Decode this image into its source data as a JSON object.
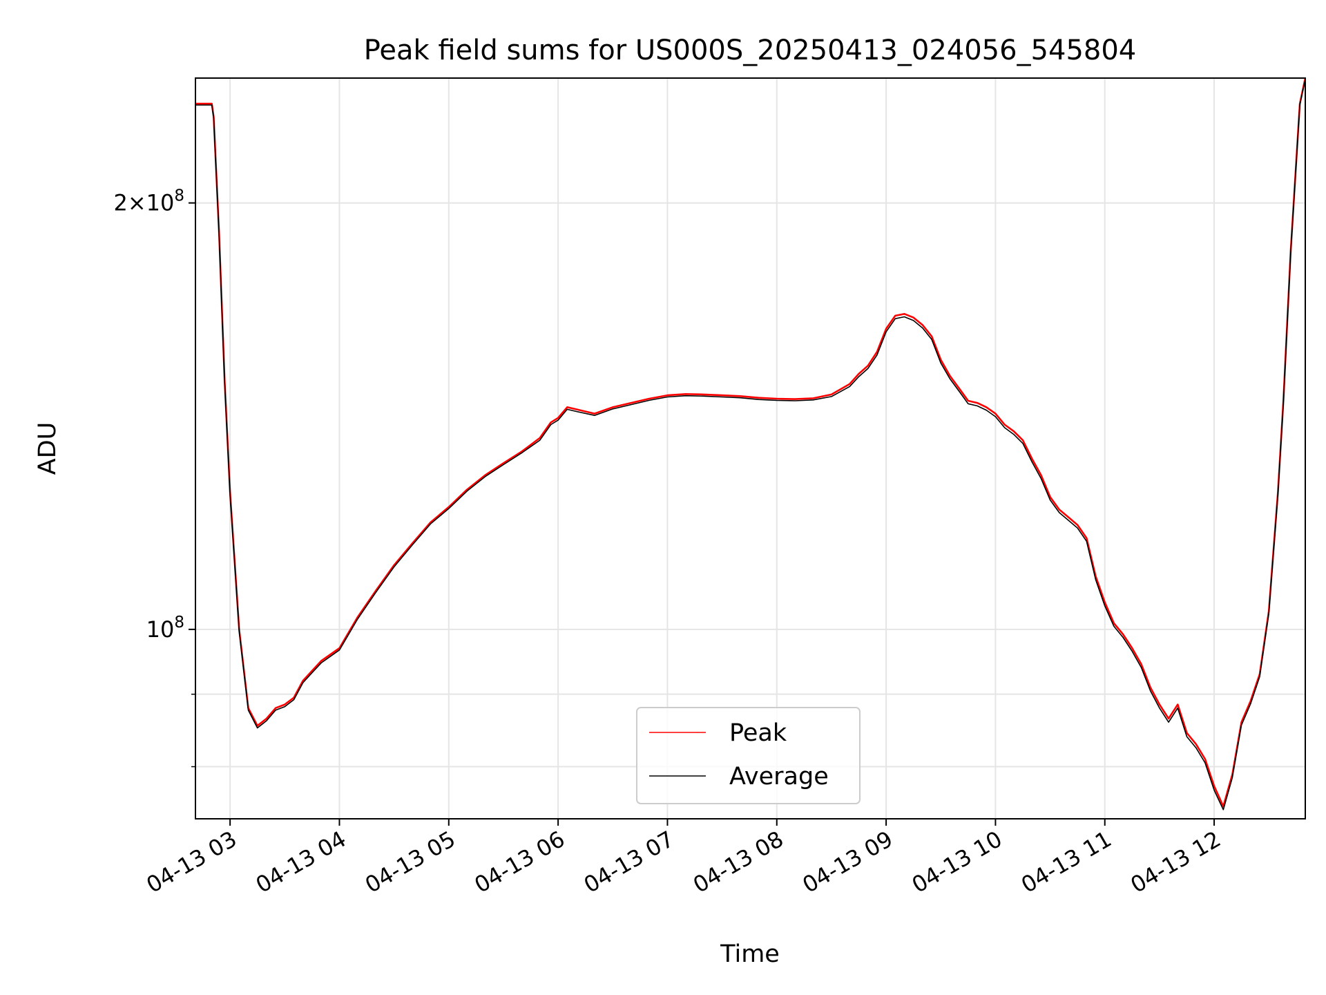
{
  "chart_data": {
    "type": "line",
    "title": "Peak field sums for US000S_20250413_024056_545804",
    "xlabel": "Time",
    "ylabel": "ADU",
    "x_axis_type": "time",
    "x_range": [
      "2025-04-13T02:41:00",
      "2025-04-13T12:50:00"
    ],
    "y_scale": "log",
    "y_range": [
      73500000,
      245000000
    ],
    "grid": true,
    "legend_position": "lower-center",
    "x_ticks": [
      "04-13 03",
      "04-13 04",
      "04-13 05",
      "04-13 06",
      "04-13 07",
      "04-13 08",
      "04-13 09",
      "04-13 10",
      "04-13 11",
      "04-13 12"
    ],
    "y_ticks": [
      {
        "label_base": "2×10",
        "label_exp": "8",
        "value": 200000000
      },
      {
        "label_base": "10",
        "label_exp": "8",
        "value": 100000000
      }
    ],
    "y_minor_ticks": [
      80000000,
      90000000
    ],
    "x": [
      "02:41",
      "02:50",
      "02:51",
      "02:54",
      "02:57",
      "03:00",
      "03:05",
      "03:10",
      "03:15",
      "03:20",
      "03:25",
      "03:30",
      "03:35",
      "03:40",
      "03:45",
      "03:50",
      "04:00",
      "04:10",
      "04:20",
      "04:30",
      "04:40",
      "04:50",
      "05:00",
      "05:10",
      "05:20",
      "05:30",
      "05:40",
      "05:50",
      "05:56",
      "06:00",
      "06:05",
      "06:10",
      "06:20",
      "06:30",
      "06:40",
      "06:50",
      "07:00",
      "07:10",
      "07:20",
      "07:30",
      "07:40",
      "07:50",
      "08:00",
      "08:10",
      "08:20",
      "08:30",
      "08:40",
      "08:45",
      "08:50",
      "08:55",
      "09:00",
      "09:05",
      "09:10",
      "09:15",
      "09:20",
      "09:25",
      "09:30",
      "09:35",
      "09:40",
      "09:45",
      "09:50",
      "09:55",
      "10:00",
      "10:05",
      "10:10",
      "10:15",
      "10:20",
      "10:25",
      "10:30",
      "10:35",
      "10:40",
      "10:45",
      "10:50",
      "10:55",
      "11:00",
      "11:05",
      "11:10",
      "11:15",
      "11:20",
      "11:25",
      "11:30",
      "11:35",
      "11:40",
      "11:45",
      "11:50",
      "11:55",
      "12:00",
      "12:05",
      "12:10",
      "12:15",
      "12:20",
      "12:25",
      "12:30",
      "12:35",
      "12:38",
      "12:42",
      "12:47",
      "12:50"
    ],
    "series": [
      {
        "name": "Peak",
        "color": "#ff0000",
        "values": [
          235000000,
          235000000,
          230000000,
          190000000,
          150000000,
          125000000,
          100000000,
          88000000,
          85500000,
          86500000,
          88000000,
          88500000,
          89500000,
          92000000,
          93500000,
          95000000,
          97000000,
          102000000,
          106500000,
          111000000,
          115000000,
          119000000,
          122000000,
          125500000,
          128500000,
          131000000,
          133500000,
          136500000,
          140000000,
          141000000,
          143500000,
          143000000,
          142000000,
          143500000,
          144500000,
          145500000,
          146300000,
          146600000,
          146500000,
          146300000,
          146100000,
          145700000,
          145500000,
          145400000,
          145600000,
          146500000,
          149000000,
          151500000,
          153500000,
          157000000,
          163000000,
          166500000,
          167000000,
          166000000,
          164000000,
          161000000,
          155000000,
          151000000,
          148000000,
          145000000,
          144500000,
          143500000,
          142000000,
          139500000,
          138000000,
          136000000,
          132000000,
          128500000,
          124000000,
          121500000,
          120000000,
          118500000,
          116000000,
          109000000,
          104500000,
          101000000,
          99200000,
          97000000,
          94500000,
          91000000,
          88500000,
          86500000,
          88500000,
          84500000,
          83000000,
          81000000,
          77500000,
          75000000,
          79000000,
          86000000,
          89000000,
          93000000,
          103000000,
          125000000,
          145000000,
          185000000,
          235000000,
          245000000
        ]
      },
      {
        "name": "Average",
        "color": "#000000",
        "values": [
          234500000,
          234500000,
          229500000,
          189500000,
          149500000,
          124500000,
          99700000,
          87700000,
          85200000,
          86200000,
          87700000,
          88200000,
          89200000,
          91700000,
          93200000,
          94700000,
          96700000,
          101700000,
          106200000,
          110700000,
          114700000,
          118700000,
          121700000,
          125200000,
          128200000,
          130700000,
          133200000,
          136000000,
          139500000,
          140500000,
          143000000,
          142500000,
          141600000,
          143100000,
          144100000,
          145100000,
          145900000,
          146200000,
          146100000,
          145900000,
          145700000,
          145300000,
          145100000,
          145000000,
          145200000,
          146000000,
          148400000,
          150800000,
          152800000,
          156200000,
          162200000,
          165700000,
          166200000,
          165200000,
          163200000,
          160200000,
          154200000,
          150300000,
          147300000,
          144300000,
          143800000,
          142800000,
          141300000,
          138800000,
          137300000,
          135300000,
          131300000,
          127800000,
          123400000,
          120900000,
          119400000,
          117900000,
          115400000,
          108400000,
          103900000,
          100500000,
          98700000,
          96500000,
          94000000,
          90500000,
          88000000,
          86000000,
          88000000,
          84000000,
          82500000,
          80500000,
          77000000,
          74600000,
          78600000,
          85600000,
          88600000,
          92600000,
          102600000,
          124500000,
          144500000,
          184500000,
          234500000,
          244500000
        ]
      }
    ],
    "legend": [
      {
        "label": "Peak",
        "color": "#ff0000"
      },
      {
        "label": "Average",
        "color": "#000000"
      }
    ]
  }
}
